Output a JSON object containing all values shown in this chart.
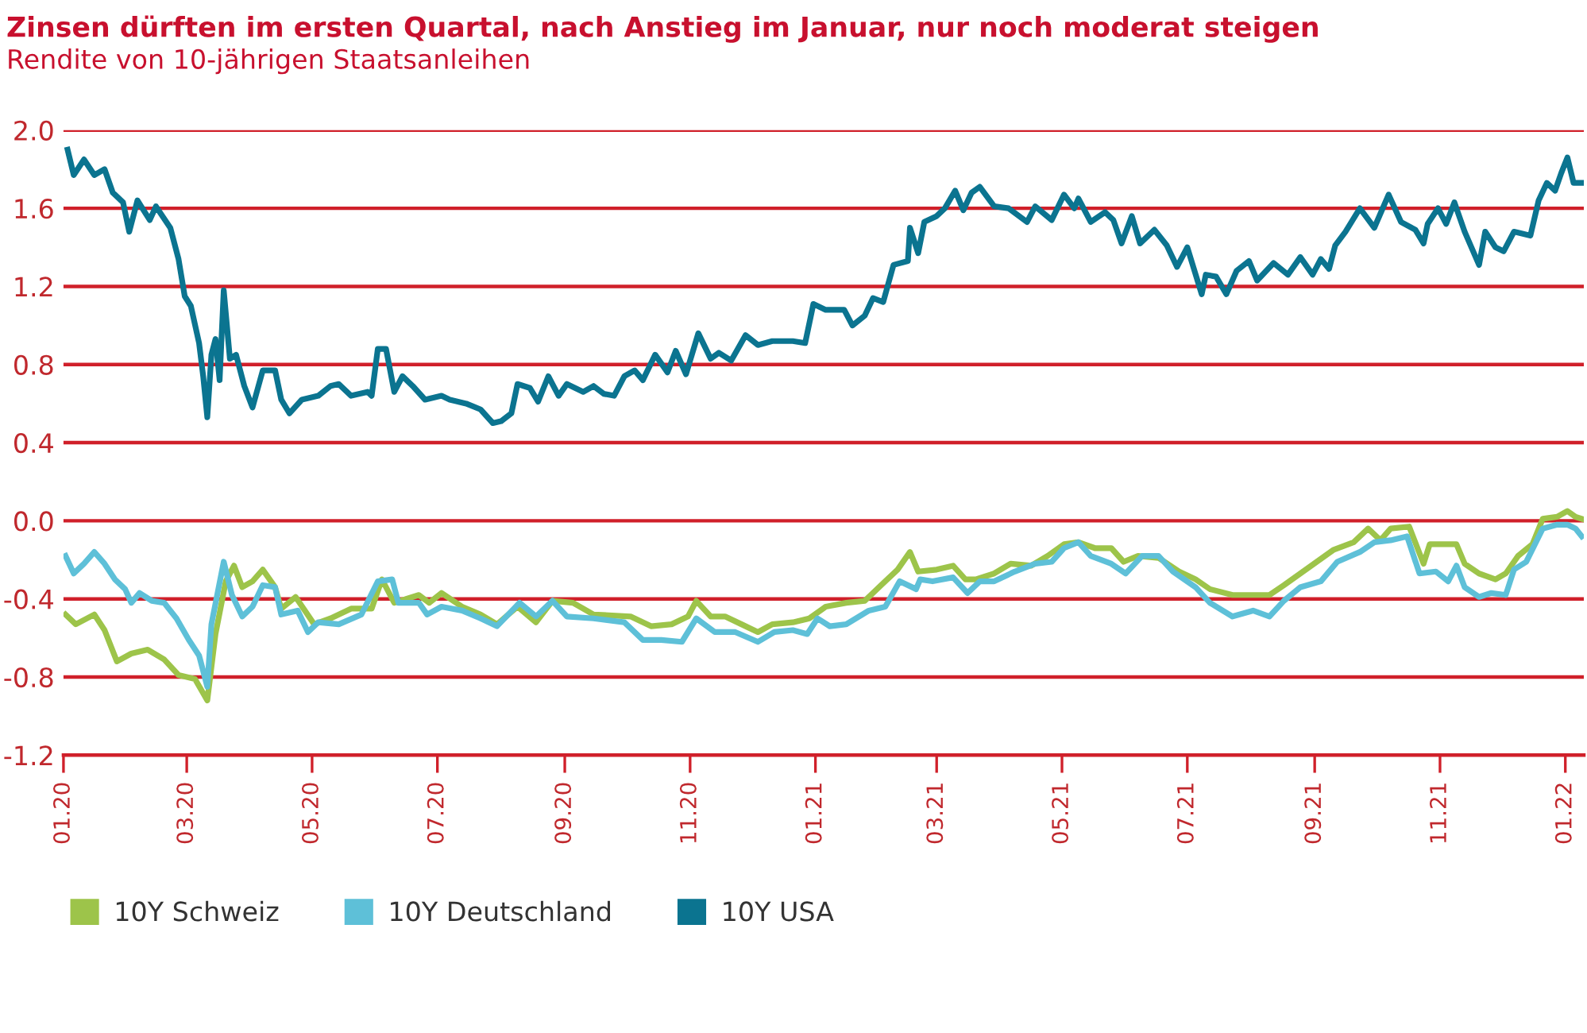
{
  "chart_data": {
    "type": "line",
    "title": "Zinsen dürften im ersten Quartal, nach Anstieg im Januar, nur noch moderat steigen",
    "subtitle": "Rendite von 10-jährigen Staatsanleihen",
    "series": [
      {
        "name": "10Y Schweiz",
        "color": "#9dc44a",
        "x": [
          "2020-01-02",
          "2020-01-07",
          "2020-01-16",
          "2020-01-21",
          "2020-01-27",
          "2020-02-03",
          "2020-02-11",
          "2020-02-19",
          "2020-02-26",
          "2020-03-05",
          "2020-03-11",
          "2020-03-15",
          "2020-03-20",
          "2020-03-24",
          "2020-03-28",
          "2020-04-02",
          "2020-04-07",
          "2020-04-13",
          "2020-04-16",
          "2020-04-23",
          "2020-05-02",
          "2020-05-10",
          "2020-05-20",
          "2020-05-30",
          "2020-06-04",
          "2020-06-10",
          "2020-06-22",
          "2020-06-27",
          "2020-07-03",
          "2020-07-13",
          "2020-07-22",
          "2020-07-30",
          "2020-08-09",
          "2020-08-18",
          "2020-08-26",
          "2020-09-05",
          "2020-09-15",
          "2020-10-03",
          "2020-10-13",
          "2020-10-23",
          "2020-10-31",
          "2020-11-04",
          "2020-11-11",
          "2020-11-18",
          "2020-11-26",
          "2020-12-04",
          "2020-12-11",
          "2020-12-21",
          "2020-12-29",
          "2021-01-06",
          "2021-01-16",
          "2021-01-25",
          "2021-02-02",
          "2021-02-10",
          "2021-02-16",
          "2021-02-20",
          "2021-03-01",
          "2021-03-09",
          "2021-03-15",
          "2021-03-20",
          "2021-03-29",
          "2021-04-06",
          "2021-04-16",
          "2021-04-24",
          "2021-05-02",
          "2021-05-09",
          "2021-05-17",
          "2021-05-25",
          "2021-05-31",
          "2021-06-07",
          "2021-06-17",
          "2021-06-27",
          "2021-07-05",
          "2021-07-12",
          "2021-07-23",
          "2021-08-02",
          "2021-08-10",
          "2021-08-17",
          "2021-08-25",
          "2021-09-02",
          "2021-09-10",
          "2021-09-20",
          "2021-09-27",
          "2021-10-03",
          "2021-10-08",
          "2021-10-17",
          "2021-10-24",
          "2021-10-27",
          "2021-11-03",
          "2021-11-09",
          "2021-11-13",
          "2021-11-20",
          "2021-11-28",
          "2021-12-03",
          "2021-12-09",
          "2021-12-16",
          "2021-12-21",
          "2021-12-28",
          "2022-01-02",
          "2022-01-06",
          "2022-01-09"
        ],
        "values": [
          -0.48,
          -0.53,
          -0.48,
          -0.56,
          -0.72,
          -0.68,
          -0.66,
          -0.71,
          -0.79,
          -0.81,
          -0.92,
          -0.58,
          -0.31,
          -0.23,
          -0.34,
          -0.31,
          -0.25,
          -0.34,
          -0.45,
          -0.39,
          -0.53,
          -0.5,
          -0.45,
          -0.45,
          -0.3,
          -0.42,
          -0.38,
          -0.42,
          -0.37,
          -0.44,
          -0.48,
          -0.53,
          -0.44,
          -0.52,
          -0.41,
          -0.42,
          -0.48,
          -0.49,
          -0.54,
          -0.53,
          -0.49,
          -0.41,
          -0.49,
          -0.49,
          -0.53,
          -0.57,
          -0.53,
          -0.52,
          -0.5,
          -0.44,
          -0.42,
          -0.41,
          -0.33,
          -0.25,
          -0.16,
          -0.26,
          -0.25,
          -0.23,
          -0.3,
          -0.3,
          -0.27,
          -0.22,
          -0.23,
          -0.18,
          -0.12,
          -0.11,
          -0.14,
          -0.14,
          -0.21,
          -0.18,
          -0.19,
          -0.26,
          -0.3,
          -0.35,
          -0.38,
          -0.38,
          -0.38,
          -0.33,
          -0.27,
          -0.21,
          -0.15,
          -0.11,
          -0.04,
          -0.1,
          -0.04,
          -0.03,
          -0.22,
          -0.12,
          -0.12,
          -0.12,
          -0.22,
          -0.27,
          -0.3,
          -0.27,
          -0.18,
          -0.12,
          0.01,
          0.02,
          0.05,
          0.02,
          0.01
        ]
      },
      {
        "name": "10Y Deutschland",
        "color": "#5ec0d8",
        "x": [
          "2020-01-02",
          "2020-01-06",
          "2020-01-11",
          "2020-01-16",
          "2020-01-21",
          "2020-01-26",
          "2020-01-31",
          "2020-02-03",
          "2020-02-07",
          "2020-02-13",
          "2020-02-19",
          "2020-02-25",
          "2020-03-02",
          "2020-03-07",
          "2020-03-11",
          "2020-03-13",
          "2020-03-19",
          "2020-03-23",
          "2020-03-28",
          "2020-04-02",
          "2020-04-07",
          "2020-04-13",
          "2020-04-16",
          "2020-04-24",
          "2020-04-29",
          "2020-05-04",
          "2020-05-14",
          "2020-05-25",
          "2020-06-02",
          "2020-06-09",
          "2020-06-12",
          "2020-06-22",
          "2020-06-26",
          "2020-07-03",
          "2020-07-13",
          "2020-07-22",
          "2020-07-30",
          "2020-08-10",
          "2020-08-18",
          "2020-08-26",
          "2020-09-02",
          "2020-09-15",
          "2020-09-30",
          "2020-10-09",
          "2020-10-18",
          "2020-10-28",
          "2020-11-04",
          "2020-11-13",
          "2020-11-23",
          "2020-12-04",
          "2020-12-12",
          "2020-12-21",
          "2020-12-28",
          "2021-01-02",
          "2021-01-08",
          "2021-01-16",
          "2021-01-27",
          "2021-02-04",
          "2021-02-11",
          "2021-02-19",
          "2021-02-21",
          "2021-02-27",
          "2021-03-09",
          "2021-03-16",
          "2021-03-22",
          "2021-03-29",
          "2021-04-08",
          "2021-04-18",
          "2021-04-26",
          "2021-05-02",
          "2021-05-09",
          "2021-05-15",
          "2021-05-25",
          "2021-06-01",
          "2021-06-09",
          "2021-06-17",
          "2021-06-24",
          "2021-07-05",
          "2021-07-12",
          "2021-07-23",
          "2021-08-02",
          "2021-08-10",
          "2021-08-17",
          "2021-08-25",
          "2021-09-04",
          "2021-09-12",
          "2021-09-23",
          "2021-09-30",
          "2021-10-08",
          "2021-10-16",
          "2021-10-22",
          "2021-10-30",
          "2021-11-05",
          "2021-11-09",
          "2021-11-13",
          "2021-11-20",
          "2021-11-26",
          "2021-12-03",
          "2021-12-07",
          "2021-12-13",
          "2021-12-21",
          "2021-12-28",
          "2022-01-02",
          "2022-01-06",
          "2022-01-09"
        ],
        "values": [
          -0.18,
          -0.27,
          -0.22,
          -0.16,
          -0.22,
          -0.3,
          -0.35,
          -0.42,
          -0.37,
          -0.41,
          -0.42,
          -0.5,
          -0.61,
          -0.69,
          -0.85,
          -0.53,
          -0.21,
          -0.38,
          -0.49,
          -0.44,
          -0.33,
          -0.34,
          -0.48,
          -0.46,
          -0.57,
          -0.52,
          -0.53,
          -0.48,
          -0.31,
          -0.3,
          -0.42,
          -0.42,
          -0.48,
          -0.44,
          -0.46,
          -0.5,
          -0.54,
          -0.42,
          -0.49,
          -0.41,
          -0.49,
          -0.5,
          -0.52,
          -0.61,
          -0.61,
          -0.62,
          -0.5,
          -0.57,
          -0.57,
          -0.62,
          -0.57,
          -0.56,
          -0.58,
          -0.5,
          -0.54,
          -0.53,
          -0.46,
          -0.44,
          -0.31,
          -0.35,
          -0.3,
          -0.31,
          -0.29,
          -0.37,
          -0.31,
          -0.31,
          -0.26,
          -0.22,
          -0.21,
          -0.14,
          -0.11,
          -0.18,
          -0.22,
          -0.27,
          -0.18,
          -0.18,
          -0.26,
          -0.34,
          -0.42,
          -0.49,
          -0.46,
          -0.49,
          -0.41,
          -0.34,
          -0.31,
          -0.21,
          -0.16,
          -0.11,
          -0.1,
          -0.08,
          -0.27,
          -0.26,
          -0.31,
          -0.23,
          -0.34,
          -0.39,
          -0.37,
          -0.38,
          -0.25,
          -0.21,
          -0.04,
          -0.02,
          -0.02,
          -0.04,
          -0.08
        ]
      },
      {
        "name": "10Y USA",
        "color": "#0b7490",
        "x": [
          "2020-01-03",
          "2020-01-06",
          "2020-01-11",
          "2020-01-16",
          "2020-01-21",
          "2020-01-25",
          "2020-01-30",
          "2020-02-02",
          "2020-02-06",
          "2020-02-12",
          "2020-02-15",
          "2020-02-22",
          "2020-02-26",
          "2020-02-29",
          "2020-03-03",
          "2020-03-07",
          "2020-03-09",
          "2020-03-11",
          "2020-03-13",
          "2020-03-15",
          "2020-03-17",
          "2020-03-19",
          "2020-03-22",
          "2020-03-25",
          "2020-03-29",
          "2020-04-02",
          "2020-04-07",
          "2020-04-13",
          "2020-04-16",
          "2020-04-20",
          "2020-04-26",
          "2020-05-04",
          "2020-05-10",
          "2020-05-14",
          "2020-05-20",
          "2020-05-28",
          "2020-05-30",
          "2020-06-02",
          "2020-06-06",
          "2020-06-10",
          "2020-06-14",
          "2020-06-19",
          "2020-06-25",
          "2020-07-03",
          "2020-07-07",
          "2020-07-15",
          "2020-07-22",
          "2020-07-28",
          "2020-08-01",
          "2020-08-06",
          "2020-08-09",
          "2020-08-15",
          "2020-08-19",
          "2020-08-24",
          "2020-08-29",
          "2020-09-02",
          "2020-09-10",
          "2020-09-15",
          "2020-09-20",
          "2020-09-25",
          "2020-09-30",
          "2020-10-05",
          "2020-10-09",
          "2020-10-15",
          "2020-10-21",
          "2020-10-25",
          "2020-10-30",
          "2020-11-05",
          "2020-11-11",
          "2020-11-15",
          "2020-11-21",
          "2020-11-28",
          "2020-12-04",
          "2020-12-11",
          "2020-12-21",
          "2020-12-27",
          "2020-12-31",
          "2021-01-06",
          "2021-01-15",
          "2021-01-19",
          "2021-01-25",
          "2021-01-29",
          "2021-02-03",
          "2021-02-08",
          "2021-02-15",
          "2021-02-16",
          "2021-02-20",
          "2021-02-23",
          "2021-03-01",
          "2021-03-05",
          "2021-03-10",
          "2021-03-14",
          "2021-03-18",
          "2021-03-22",
          "2021-03-29",
          "2021-04-05",
          "2021-04-14",
          "2021-04-18",
          "2021-04-26",
          "2021-05-02",
          "2021-05-07",
          "2021-05-09",
          "2021-05-15",
          "2021-05-22",
          "2021-05-26",
          "2021-05-30",
          "2021-06-04",
          "2021-06-08",
          "2021-06-15",
          "2021-06-21",
          "2021-06-26",
          "2021-07-01",
          "2021-07-08",
          "2021-07-10",
          "2021-07-15",
          "2021-07-20",
          "2021-07-25",
          "2021-07-31",
          "2021-08-04",
          "2021-08-12",
          "2021-08-19",
          "2021-08-25",
          "2021-08-31",
          "2021-09-04",
          "2021-09-08",
          "2021-09-11",
          "2021-09-16",
          "2021-09-23",
          "2021-09-30",
          "2021-10-07",
          "2021-10-13",
          "2021-10-20",
          "2021-10-24",
          "2021-10-26",
          "2021-10-31",
          "2021-11-04",
          "2021-11-08",
          "2021-11-13",
          "2021-11-20",
          "2021-11-23",
          "2021-11-28",
          "2021-12-02",
          "2021-12-07",
          "2021-12-15",
          "2021-12-19",
          "2021-12-23",
          "2021-12-27",
          "2021-12-30",
          "2022-01-02",
          "2022-01-05",
          "2022-01-09"
        ],
        "values": [
          1.9,
          1.77,
          1.85,
          1.77,
          1.8,
          1.68,
          1.63,
          1.48,
          1.64,
          1.54,
          1.61,
          1.5,
          1.34,
          1.15,
          1.1,
          0.91,
          0.74,
          0.53,
          0.85,
          0.93,
          0.72,
          1.18,
          0.83,
          0.85,
          0.69,
          0.58,
          0.77,
          0.77,
          0.62,
          0.55,
          0.62,
          0.64,
          0.69,
          0.7,
          0.64,
          0.66,
          0.64,
          0.88,
          0.88,
          0.66,
          0.74,
          0.69,
          0.62,
          0.64,
          0.62,
          0.6,
          0.57,
          0.5,
          0.51,
          0.55,
          0.7,
          0.68,
          0.61,
          0.74,
          0.64,
          0.7,
          0.66,
          0.69,
          0.65,
          0.64,
          0.74,
          0.77,
          0.72,
          0.85,
          0.76,
          0.87,
          0.75,
          0.96,
          0.83,
          0.86,
          0.82,
          0.95,
          0.9,
          0.92,
          0.92,
          0.91,
          1.11,
          1.08,
          1.08,
          1.0,
          1.05,
          1.14,
          1.12,
          1.31,
          1.33,
          1.5,
          1.37,
          1.53,
          1.56,
          1.6,
          1.69,
          1.59,
          1.68,
          1.71,
          1.61,
          1.6,
          1.53,
          1.61,
          1.54,
          1.67,
          1.6,
          1.65,
          1.53,
          1.58,
          1.54,
          1.42,
          1.56,
          1.42,
          1.49,
          1.41,
          1.3,
          1.4,
          1.16,
          1.26,
          1.25,
          1.16,
          1.28,
          1.33,
          1.23,
          1.32,
          1.26,
          1.35,
          1.26,
          1.34,
          1.29,
          1.41,
          1.48,
          1.6,
          1.5,
          1.67,
          1.53,
          1.49,
          1.42,
          1.52,
          1.6,
          1.52,
          1.63,
          1.48,
          1.31,
          1.48,
          1.4,
          1.38,
          1.48,
          1.46,
          1.64,
          1.73,
          1.69,
          1.78,
          1.86,
          1.73,
          1.73
        ]
      }
    ],
    "xlim": [
      "2020-01-01",
      "2022-01-10"
    ],
    "xticks": [
      {
        "value": "2020-01-01",
        "label": "01.20"
      },
      {
        "value": "2020-03-01",
        "label": "03.20"
      },
      {
        "value": "2020-05-01",
        "label": "05.20"
      },
      {
        "value": "2020-07-01",
        "label": "07.20"
      },
      {
        "value": "2020-09-01",
        "label": "09.20"
      },
      {
        "value": "2020-11-01",
        "label": "11.20"
      },
      {
        "value": "2021-01-01",
        "label": "01.21"
      },
      {
        "value": "2021-03-01",
        "label": "03.21"
      },
      {
        "value": "2021-05-01",
        "label": "05.21"
      },
      {
        "value": "2021-07-01",
        "label": "07.21"
      },
      {
        "value": "2021-09-01",
        "label": "09.21"
      },
      {
        "value": "2021-11-01",
        "label": "11.21"
      },
      {
        "value": "2022-01-01",
        "label": "01.22"
      }
    ],
    "ylim": [
      -1.2,
      2.0
    ],
    "yticks": [
      {
        "value": -1.2,
        "label": "-1.2"
      },
      {
        "value": -0.8,
        "label": "-0.8"
      },
      {
        "value": -0.4,
        "label": "-0.4"
      },
      {
        "value": 0,
        "label": "0.0"
      },
      {
        "value": 0.4,
        "label": "0.4"
      },
      {
        "value": 0.8,
        "label": "0.8"
      },
      {
        "value": 1.2,
        "label": "1.2"
      },
      {
        "value": 1.6,
        "label": "1.6"
      },
      {
        "value": 2.0,
        "label": "2.0"
      }
    ],
    "grid": "y",
    "legend": "bottom left",
    "marker": "none",
    "line_style": "solid"
  }
}
